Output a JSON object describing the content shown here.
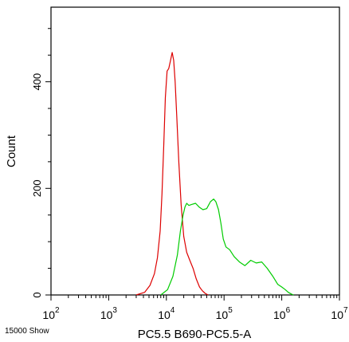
{
  "footer_label": "15000 Show",
  "chart_data": {
    "type": "line",
    "xlabel": "PC5.5 B690-PC5.5-A",
    "ylabel": "Count",
    "x_scale": "log",
    "xlim": [
      100,
      10000000
    ],
    "ylim": [
      0,
      540
    ],
    "grid": false,
    "x_ticks": [
      {
        "value": 100,
        "base": "10",
        "exp": "2"
      },
      {
        "value": 1000,
        "base": "10",
        "exp": "3"
      },
      {
        "value": 10000,
        "base": "10",
        "exp": "4"
      },
      {
        "value": 100000,
        "base": "10",
        "exp": "5"
      },
      {
        "value": 1000000,
        "base": "10",
        "exp": "6"
      },
      {
        "value": 10000000,
        "base": "10",
        "exp": "7"
      }
    ],
    "y_ticks": [
      {
        "value": 0,
        "label": "0"
      },
      {
        "value": 200,
        "label": "200"
      },
      {
        "value": 400,
        "label": "400"
      }
    ],
    "series": [
      {
        "color": "#dd0000",
        "x": [
          3000,
          4200,
          5200,
          6200,
          7000,
          7800,
          8400,
          9000,
          9600,
          10300,
          11000,
          11800,
          12600,
          13400,
          14200,
          15200,
          16400,
          18000,
          20000,
          22500,
          25500,
          29000,
          33000,
          37500,
          42000,
          47000,
          53000
        ],
        "y": [
          0,
          5,
          18,
          40,
          70,
          120,
          190,
          280,
          370,
          420,
          425,
          440,
          455,
          440,
          400,
          330,
          250,
          170,
          110,
          80,
          65,
          50,
          30,
          15,
          8,
          3,
          0
        ]
      },
      {
        "color": "#00cc00",
        "x": [
          8000,
          10500,
          13000,
          15500,
          17500,
          19500,
          21000,
          22500,
          24500,
          27500,
          32000,
          37000,
          43000,
          50000,
          58000,
          66000,
          72000,
          80000,
          88000,
          97000,
          108000,
          125000,
          150000,
          185000,
          230000,
          290000,
          360000,
          450000,
          560000,
          700000,
          850000,
          1000000,
          1150000,
          1300000,
          1450000,
          1600000
        ],
        "y": [
          0,
          10,
          35,
          75,
          120,
          150,
          165,
          172,
          168,
          170,
          172,
          165,
          160,
          162,
          175,
          180,
          175,
          160,
          135,
          105,
          90,
          85,
          72,
          62,
          55,
          65,
          60,
          62,
          50,
          35,
          20,
          15,
          10,
          5,
          2,
          0
        ]
      }
    ]
  }
}
